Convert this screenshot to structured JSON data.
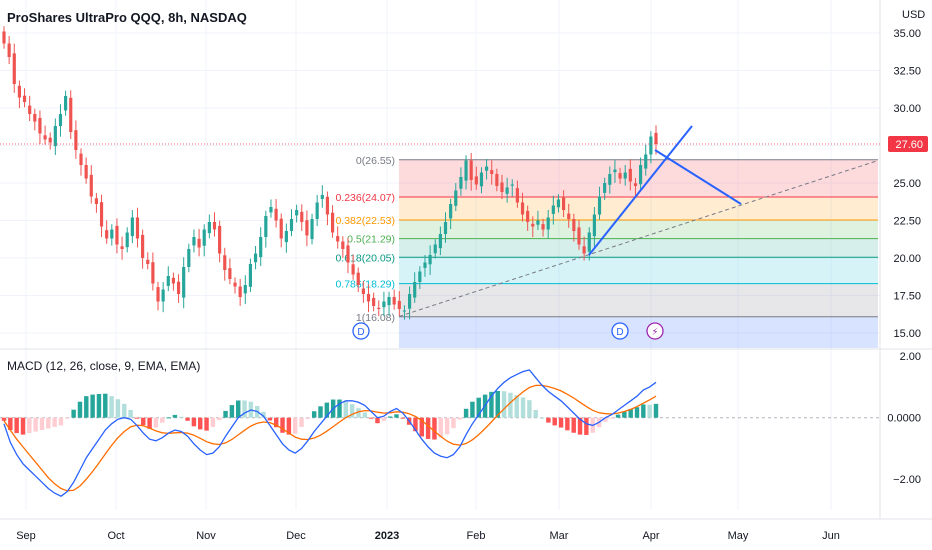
{
  "header": {
    "title": "ProShares UltraPro QQQ, 8h, NASDAQ",
    "currency": "USD"
  },
  "macd_panel": {
    "title": "MACD (12, 26, close, 9, EMA, EMA)"
  },
  "colors": {
    "up": "#26a69a",
    "down": "#ef5350",
    "drawing": "#2962ff",
    "macd_line": "#2962ff",
    "signal_line": "#ff6d00",
    "hist_up_strong": "#26a69a",
    "hist_up_weak": "#b2dfdb",
    "hist_down_strong": "#ff5252",
    "hist_down_weak": "#ffcdd2",
    "price_label": "#f23645"
  },
  "last_price": "27.60",
  "chart_data": [
    {
      "type": "candlestick",
      "title": "ProShares UltraPro QQQ, 8h, NASDAQ",
      "ylabel": "USD",
      "ylim": [
        14.0,
        36.0
      ],
      "y_ticks": [
        "35.00",
        "32.50",
        "30.00",
        "27.50",
        "25.00",
        "22.50",
        "20.00",
        "17.50",
        "15.00"
      ],
      "x_ticks": [
        "Sep",
        "Oct",
        "Nov",
        "Dec",
        "2023",
        "Feb",
        "Mar",
        "Apr",
        "May",
        "Jun"
      ],
      "last_price": 27.6,
      "close_series": [
        34.3,
        33.4,
        31.6,
        30.7,
        30.4,
        29.6,
        29.1,
        28.3,
        27.9,
        27.7,
        28.8,
        29.6,
        30.8,
        28.4,
        27.2,
        26.2,
        25.3,
        24.1,
        23.6,
        22.1,
        21.3,
        21.9,
        20.9,
        20.6,
        21.7,
        22.7,
        21.3,
        20.0,
        19.6,
        18.3,
        17.1,
        17.9,
        18.8,
        18.3,
        17.6,
        19.4,
        20.6,
        21.4,
        20.7,
        21.9,
        22.4,
        21.9,
        20.3,
        19.2,
        18.6,
        18.1,
        17.4,
        18.2,
        19.6,
        20.3,
        21.4,
        22.8,
        23.4,
        22.5,
        21.3,
        21.8,
        22.6,
        23.2,
        22.4,
        21.5,
        22.6,
        23.7,
        24.2,
        22.9,
        21.7,
        21.1,
        20.6,
        19.7,
        18.9,
        18.2,
        17.6,
        17.1,
        16.8,
        16.6,
        17.1,
        17.4,
        16.9,
        16.6,
        16.5,
        17.6,
        18.4,
        19.1,
        19.7,
        20.2,
        20.9,
        21.6,
        22.4,
        23.6,
        24.5,
        25.4,
        26.5,
        25.2,
        24.9,
        25.7,
        26.1,
        25.6,
        24.8,
        24.4,
        24.7,
        24.9,
        23.7,
        22.9,
        22.4,
        22.1,
        22.5,
        21.9,
        22.7,
        23.5,
        23.9,
        23.2,
        22.6,
        21.8,
        20.9,
        20.3,
        21.7,
        22.9,
        24.1,
        25.0,
        25.6,
        25.9,
        25.3,
        25.7,
        25.1,
        24.8,
        26.2,
        26.9,
        28.1,
        27.6
      ],
      "fibonacci_retracement": [
        {
          "label": "0(26.55)",
          "level": 0,
          "price": 26.55
        },
        {
          "label": "0.236(24.07)",
          "level": 0.236,
          "price": 24.07
        },
        {
          "label": "0.382(22.53)",
          "level": 0.382,
          "price": 22.53
        },
        {
          "label": "0.5(21.29)",
          "level": 0.5,
          "price": 21.29
        },
        {
          "label": "0.618(20.05)",
          "level": 0.618,
          "price": 20.05
        },
        {
          "label": "0.786(18.29)",
          "level": 0.786,
          "price": 18.29
        },
        {
          "label": "1(16.08)",
          "level": 1,
          "price": 16.08
        }
      ],
      "markers": [
        "D",
        "D",
        "⚡"
      ]
    },
    {
      "type": "macd",
      "title": "MACD (12, 26, close, 9, EMA, EMA)",
      "ylim": [
        -3.0,
        2.2
      ],
      "y_ticks": [
        "2.00",
        "0.0000",
        "−2.00"
      ],
      "macd": [
        -0.2,
        -0.8,
        -1.2,
        -1.5,
        -1.7,
        -1.9,
        -2.1,
        -2.3,
        -2.45,
        -2.55,
        -2.4,
        -2.1,
        -1.7,
        -1.3,
        -1.0,
        -0.7,
        -0.4,
        -0.2,
        -0.05,
        0.0,
        -0.05,
        -0.25,
        -0.5,
        -0.7,
        -0.75,
        -0.65,
        -0.5,
        -0.4,
        -0.45,
        -0.6,
        -0.85,
        -1.05,
        -1.2,
        -1.15,
        -0.95,
        -0.6,
        -0.3,
        0.0,
        0.15,
        0.25,
        0.2,
        0.05,
        -0.25,
        -0.55,
        -0.85,
        -1.05,
        -1.15,
        -1.0,
        -0.75,
        -0.45,
        -0.2,
        0.05,
        0.3,
        0.45,
        0.55,
        0.55,
        0.5,
        0.4,
        0.2,
        0.0,
        0.05,
        0.2,
        0.3,
        0.15,
        -0.1,
        -0.4,
        -0.7,
        -0.95,
        -1.15,
        -1.25,
        -1.3,
        -1.2,
        -0.95,
        -0.55,
        -0.2,
        0.1,
        0.4,
        0.7,
        0.95,
        1.15,
        1.3,
        1.4,
        1.5,
        1.55,
        1.3,
        1.05,
        0.85,
        0.7,
        0.55,
        0.35,
        0.15,
        -0.05,
        -0.2,
        -0.25,
        -0.15,
        0.0,
        0.1,
        0.25,
        0.4,
        0.55,
        0.7,
        0.9,
        1.0,
        1.15
      ],
      "signal": [
        -0.1,
        -0.4,
        -0.7,
        -0.95,
        -1.2,
        -1.45,
        -1.7,
        -1.95,
        -2.15,
        -2.3,
        -2.38,
        -2.36,
        -2.22,
        -2.0,
        -1.75,
        -1.47,
        -1.18,
        -0.9,
        -0.65,
        -0.45,
        -0.3,
        -0.24,
        -0.26,
        -0.34,
        -0.43,
        -0.49,
        -0.51,
        -0.49,
        -0.48,
        -0.5,
        -0.57,
        -0.67,
        -0.78,
        -0.85,
        -0.87,
        -0.82,
        -0.71,
        -0.56,
        -0.41,
        -0.27,
        -0.18,
        -0.14,
        -0.16,
        -0.24,
        -0.36,
        -0.5,
        -0.63,
        -0.7,
        -0.71,
        -0.66,
        -0.57,
        -0.44,
        -0.29,
        -0.14,
        0.0,
        0.11,
        0.19,
        0.23,
        0.22,
        0.18,
        0.15,
        0.16,
        0.19,
        0.18,
        0.13,
        0.04,
        -0.09,
        -0.26,
        -0.44,
        -0.61,
        -0.76,
        -0.86,
        -0.89,
        -0.84,
        -0.72,
        -0.55,
        -0.35,
        -0.14,
        0.08,
        0.29,
        0.49,
        0.67,
        0.84,
        0.98,
        1.05,
        1.05,
        1.01,
        0.95,
        0.87,
        0.76,
        0.64,
        0.5,
        0.36,
        0.24,
        0.16,
        0.13,
        0.12,
        0.15,
        0.2,
        0.27,
        0.36,
        0.47,
        0.58,
        0.7
      ]
    }
  ]
}
